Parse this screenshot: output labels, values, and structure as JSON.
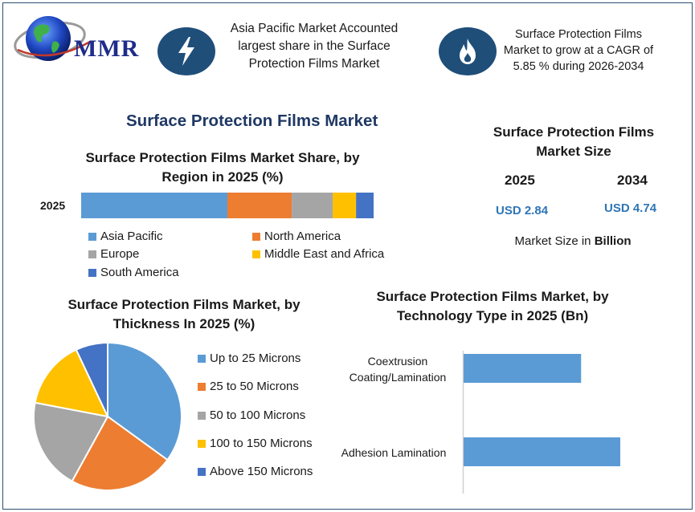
{
  "header": {
    "logo_text": "MMR",
    "highlight_1": "Asia Pacific Market Accounted largest share in the Surface Protection Films Market",
    "highlight_2": "Surface Protection Films Market to grow at a CAGR of 5.85 % during 2026-2034",
    "icons": [
      "lightning-icon",
      "flame-icon",
      "globe-icon"
    ]
  },
  "main_title": "Surface Protection Films Market",
  "market_size": {
    "title": "Surface Protection Films Market Size",
    "year_1": "2025",
    "year_2": "2034",
    "value_1": "USD 2.84",
    "value_2": "USD 4.74",
    "unit_prefix": "Market Size in ",
    "unit_bold": "Billion"
  },
  "chart_data": [
    {
      "type": "bar",
      "orientation": "horizontal-stacked",
      "title": "Surface Protection Films Market Share, by Region in 2025 (%)",
      "categories": [
        "2025"
      ],
      "series": [
        {
          "name": "Asia Pacific",
          "values": [
            50
          ],
          "color": "#5b9bd5"
        },
        {
          "name": "North America",
          "values": [
            22
          ],
          "color": "#ed7d31"
        },
        {
          "name": "Europe",
          "values": [
            14
          ],
          "color": "#a5a5a5"
        },
        {
          "name": "Middle East and Africa",
          "values": [
            8
          ],
          "color": "#ffc000"
        },
        {
          "name": "South America",
          "values": [
            6
          ],
          "color": "#4472c4"
        }
      ],
      "legend": "bottom"
    },
    {
      "type": "pie",
      "title": "Surface Protection Films Market, by Thickness In 2025 (%)",
      "labels": [
        "Up to 25 Microns",
        "25 to 50 Microns",
        "50 to 100 Microns",
        "100 to 150 Microns",
        "Above 150 Microns"
      ],
      "values": [
        35,
        23,
        20,
        15,
        7
      ],
      "colors": [
        "#5b9bd5",
        "#ed7d31",
        "#a5a5a5",
        "#ffc000",
        "#4472c4"
      ],
      "legend": "right"
    },
    {
      "type": "bar",
      "orientation": "horizontal",
      "title": "Surface Protection Films Market, by Technology Type in 2025 (Bn)",
      "categories": [
        "Coextrusion Coating/Lamination",
        "Adhesion Lamination"
      ],
      "values": [
        0.75,
        1.0
      ],
      "color": "#5b9bd5"
    }
  ]
}
